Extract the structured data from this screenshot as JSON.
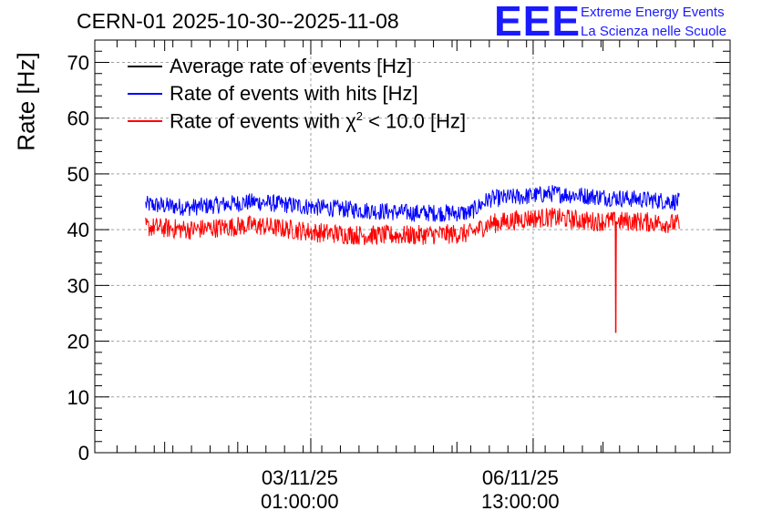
{
  "header": {
    "title": "CERN-01 2025-10-30--2025-11-08",
    "logo": "EEE",
    "logo_line1": "Extreme Energy Events",
    "logo_line2": "La Scienza nelle Scuole"
  },
  "colors": {
    "average": "#000000",
    "hits": "#0000ff",
    "chi2": "#ff0000",
    "logo": "#1a1aff",
    "grid": "#a0a0a0"
  },
  "chart_data": {
    "type": "line",
    "title": "CERN-01 2025-10-30--2025-11-08",
    "ylabel": "Rate [Hz]",
    "xlabel": "",
    "ylim": [
      0,
      74
    ],
    "xlim": [
      0,
      1
    ],
    "yticks": [
      "0",
      "10",
      "20",
      "30",
      "40",
      "50",
      "60",
      "70"
    ],
    "xticks": [
      {
        "date": "03/11/25",
        "time": "01:00:00",
        "x": 0.34
      },
      {
        "date": "06/11/25",
        "time": "13:00:00",
        "x": 0.69
      }
    ],
    "grid": true,
    "legend_position": "top-left",
    "legend": [
      {
        "label": "Average rate of events [Hz]",
        "color": "#000000"
      },
      {
        "label": "Rate of events with hits [Hz]",
        "color": "#0000ff"
      },
      {
        "label_pre": "Rate of events with ",
        "label_chi": "χ",
        "label_sup": "2",
        "label_post": " < 10.0 [Hz]",
        "color": "#ff0000"
      }
    ],
    "series": [
      {
        "name": "Rate of events with hits [Hz]",
        "color": "#0000ff",
        "x": [
          0.08,
          0.15,
          0.25,
          0.35,
          0.42,
          0.5,
          0.59,
          0.62,
          0.68,
          0.72,
          0.78,
          0.85,
          0.92
        ],
        "y": [
          44.5,
          44.0,
          45.0,
          44.0,
          43.5,
          43.0,
          43.0,
          45.5,
          46.0,
          46.5,
          46.0,
          45.5,
          45.0
        ],
        "noise": 1.6
      },
      {
        "name": "Rate of events with χ2 < 10.0 [Hz]",
        "color": "#ff0000",
        "x": [
          0.08,
          0.15,
          0.25,
          0.35,
          0.42,
          0.5,
          0.59,
          0.62,
          0.68,
          0.72,
          0.78,
          0.85,
          0.92
        ],
        "y": [
          40.5,
          40.0,
          40.8,
          39.5,
          39.0,
          39.0,
          39.3,
          41.0,
          42.0,
          42.2,
          41.5,
          41.5,
          41.0
        ],
        "noise": 1.8,
        "dip": {
          "x": 0.82,
          "y": 21.5
        }
      }
    ]
  }
}
